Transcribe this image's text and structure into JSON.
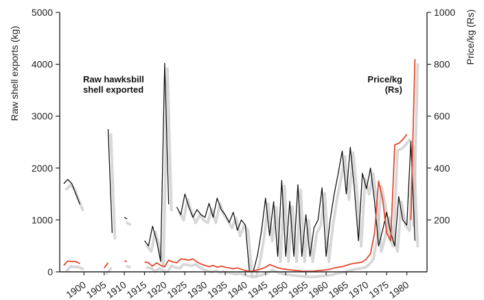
{
  "chart_data": {
    "type": "line",
    "title": "",
    "xlabel": "",
    "ylabel_left": "Raw shell exports (kg)",
    "ylabel_right": "Price/kg (Rs)",
    "xlim": [
      1894,
      1985
    ],
    "ylim_left": [
      0,
      5000
    ],
    "ylim_right": [
      0,
      1000
    ],
    "x_ticks": [
      1900,
      1905,
      1910,
      1915,
      1920,
      1925,
      1930,
      1935,
      1940,
      1945,
      1950,
      1955,
      1960,
      1965,
      1970,
      1975,
      1980
    ],
    "y_ticks_left": [
      0,
      1000,
      2000,
      3000,
      4000,
      5000
    ],
    "y_ticks_right": [
      200,
      400,
      600,
      800,
      1000
    ],
    "grid": false,
    "annotations": [
      {
        "lines": [
          "Raw hawksbill",
          "shell exported"
        ]
      },
      {
        "lines": [
          "Price/kg",
          "(Rs)"
        ]
      }
    ],
    "series": [
      {
        "name": "Raw hawksbill shell exported",
        "axis": "left",
        "color": "#111111",
        "segments": [
          [
            [
              1895,
              1700
            ],
            [
              1896,
              1780
            ],
            [
              1897,
              1700
            ],
            [
              1898,
              1500
            ],
            [
              1899,
              1300
            ]
          ],
          [
            [
              1906,
              2750
            ],
            [
              1907,
              750
            ]
          ],
          [
            [
              1910,
              1050
            ],
            [
              1910.7,
              1020
            ]
          ],
          [
            [
              1915,
              600
            ],
            [
              1916,
              500
            ],
            [
              1917,
              880
            ],
            [
              1918,
              600
            ],
            [
              1919,
              200
            ],
            [
              1920,
              4020
            ],
            [
              1921,
              1300
            ]
          ],
          [
            [
              1923,
              1250
            ],
            [
              1924,
              1100
            ],
            [
              1925,
              1500
            ],
            [
              1926,
              1250
            ],
            [
              1927,
              1050
            ],
            [
              1928,
              1200
            ],
            [
              1929,
              1100
            ],
            [
              1930,
              1050
            ],
            [
              1931,
              1320
            ],
            [
              1932,
              1050
            ],
            [
              1933,
              1420
            ],
            [
              1934,
              1200
            ],
            [
              1935,
              1100
            ],
            [
              1936,
              950
            ],
            [
              1937,
              1150
            ],
            [
              1938,
              800
            ],
            [
              1939,
              1000
            ],
            [
              1940,
              900
            ],
            [
              1941,
              10
            ]
          ],
          [
            [
              1942,
              20
            ],
            [
              1943,
              320
            ],
            [
              1944,
              800
            ],
            [
              1945,
              1420
            ],
            [
              1946,
              700
            ],
            [
              1947,
              1350
            ],
            [
              1948,
              300
            ],
            [
              1949,
              1760
            ],
            [
              1950,
              300
            ],
            [
              1951,
              1360
            ],
            [
              1952,
              300
            ],
            [
              1953,
              1680
            ],
            [
              1954,
              300
            ],
            [
              1955,
              1100
            ],
            [
              1956,
              300
            ],
            [
              1957,
              850
            ],
            [
              1958,
              1000
            ],
            [
              1959,
              1620
            ],
            [
              1960,
              300
            ],
            [
              1961,
              1000
            ],
            [
              1962,
              1500
            ],
            [
              1963,
              1900
            ],
            [
              1964,
              2330
            ],
            [
              1965,
              1500
            ],
            [
              1966,
              2400
            ],
            [
              1967,
              1600
            ],
            [
              1968,
              600
            ],
            [
              1969,
              1900
            ],
            [
              1970,
              1600
            ],
            [
              1971,
              2000
            ],
            [
              1972,
              1350
            ],
            [
              1973,
              500
            ],
            [
              1974,
              800
            ],
            [
              1975,
              1150
            ],
            [
              1976,
              750
            ],
            [
              1977,
              500
            ],
            [
              1978,
              1450
            ],
            [
              1979,
              1000
            ],
            [
              1980,
              900
            ],
            [
              1981,
              2520
            ],
            [
              1982,
              600
            ]
          ]
        ]
      },
      {
        "name": "Price/kg (Rs)",
        "axis": "right",
        "color": "#e4452a",
        "segments": [
          [
            [
              1895,
              25
            ],
            [
              1896,
              42
            ],
            [
              1897,
              40
            ],
            [
              1898,
              40
            ],
            [
              1899,
              32
            ]
          ],
          [
            [
              1905,
              15
            ],
            [
              1906,
              35
            ]
          ],
          [
            [
              1910,
              42
            ],
            [
              1910.6,
              40
            ]
          ],
          [
            [
              1915,
              38
            ],
            [
              1916,
              35
            ],
            [
              1917,
              22
            ],
            [
              1918,
              35
            ],
            [
              1919,
              25
            ],
            [
              1920,
              20
            ],
            [
              1921,
              45
            ],
            [
              1922,
              38
            ],
            [
              1923,
              35
            ],
            [
              1924,
              50
            ],
            [
              1925,
              48
            ],
            [
              1926,
              45
            ],
            [
              1927,
              50
            ],
            [
              1928,
              38
            ],
            [
              1929,
              30
            ],
            [
              1930,
              25
            ],
            [
              1931,
              20
            ],
            [
              1932,
              25
            ],
            [
              1933,
              18
            ],
            [
              1934,
              22
            ],
            [
              1935,
              18
            ],
            [
              1936,
              15
            ],
            [
              1937,
              12
            ],
            [
              1938,
              15
            ],
            [
              1939,
              10
            ],
            [
              1940,
              5
            ],
            [
              1941,
              2
            ],
            [
              1942,
              3
            ],
            [
              1943,
              8
            ],
            [
              1944,
              12
            ],
            [
              1945,
              18
            ],
            [
              1946,
              28
            ],
            [
              1947,
              22
            ],
            [
              1948,
              16
            ],
            [
              1949,
              12
            ],
            [
              1950,
              10
            ],
            [
              1951,
              8
            ],
            [
              1952,
              6
            ],
            [
              1953,
              5
            ],
            [
              1954,
              3
            ],
            [
              1955,
              2
            ],
            [
              1956,
              2
            ],
            [
              1957,
              3
            ],
            [
              1958,
              5
            ],
            [
              1959,
              6
            ],
            [
              1960,
              8
            ],
            [
              1961,
              10
            ],
            [
              1962,
              15
            ],
            [
              1963,
              18
            ],
            [
              1964,
              20
            ],
            [
              1965,
              25
            ],
            [
              1966,
              30
            ],
            [
              1967,
              33
            ],
            [
              1968,
              35
            ],
            [
              1969,
              38
            ],
            [
              1970,
              50
            ],
            [
              1971,
              70
            ],
            [
              1972,
              150
            ],
            [
              1973,
              350
            ],
            [
              1974,
              280
            ],
            [
              1975,
              150
            ],
            [
              1976,
              120
            ],
            [
              1977,
              490
            ],
            [
              1978,
              495
            ],
            [
              1979,
              510
            ],
            [
              1980,
              530
            ]
          ],
          [
            [
              1981,
              200
            ],
            [
              1982,
              820
            ]
          ]
        ]
      }
    ]
  }
}
